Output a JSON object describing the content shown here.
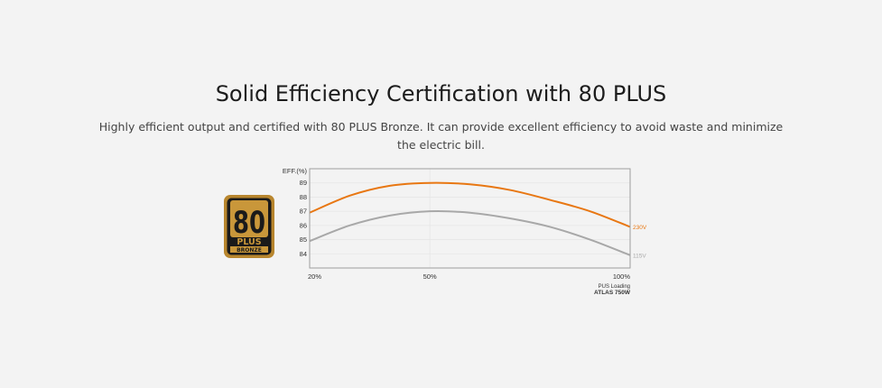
{
  "header": {
    "title": "Solid Efficiency Certification with 80 PLUS",
    "description_line1": "Highly efficient output and certified with 80 PLUS Bronze. It can provide excellent efficiency to avoid waste and minimize",
    "description_line2": "the electric bill."
  },
  "badge": {
    "number": "80",
    "plus": "PLUS",
    "level": "BRONZE",
    "colors": {
      "bronze": "#b8862e",
      "dark": "#1a1a1a"
    }
  },
  "chart_data": {
    "type": "line",
    "ylabel": "EFF.(%)",
    "xlabel": "PUS Loading",
    "model": "ATLAS 750W",
    "x_ticks": [
      "20%",
      "50%",
      "100%"
    ],
    "y_ticks": [
      84,
      85,
      86,
      87,
      88,
      89
    ],
    "xlim": [
      20,
      100
    ],
    "ylim": [
      83,
      90
    ],
    "grid": true,
    "series": [
      {
        "name": "230V",
        "color": "#e87712",
        "points": [
          [
            20,
            86.9
          ],
          [
            30,
            88.1
          ],
          [
            40,
            88.8
          ],
          [
            50,
            89.0
          ],
          [
            60,
            88.9
          ],
          [
            70,
            88.5
          ],
          [
            80,
            87.8
          ],
          [
            90,
            87.0
          ],
          [
            100,
            85.9
          ]
        ]
      },
      {
        "name": "115V",
        "color": "#a8a8a8",
        "points": [
          [
            20,
            84.9
          ],
          [
            30,
            86.0
          ],
          [
            40,
            86.7
          ],
          [
            50,
            87.0
          ],
          [
            60,
            86.9
          ],
          [
            70,
            86.5
          ],
          [
            80,
            85.9
          ],
          [
            90,
            85.0
          ],
          [
            100,
            83.9
          ]
        ]
      }
    ]
  }
}
